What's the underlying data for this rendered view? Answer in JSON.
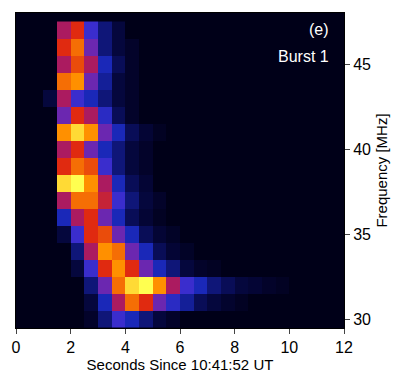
{
  "chart_data": {
    "type": "heatmap",
    "x_label": "Seconds Since 10:41:52 UT",
    "y_label": "Frequency [MHz]",
    "annotations": [
      "(e)",
      "Burst 1"
    ],
    "xlim": [
      0,
      12
    ],
    "ylim": [
      29.5,
      48
    ],
    "xticks": [
      0,
      2,
      4,
      6,
      8,
      10,
      12
    ],
    "yticks": [
      30,
      35,
      40,
      45
    ],
    "x": [
      0.25,
      0.75,
      1.25,
      1.75,
      2.25,
      2.75,
      3.25,
      3.75,
      4.25,
      4.75,
      5.25,
      5.75,
      6.25,
      6.75,
      7.25,
      7.75,
      8.25,
      8.75,
      9.25,
      9.75,
      10.25,
      10.75,
      11.25,
      11.75
    ],
    "y": [
      30,
      31,
      32,
      33,
      34,
      35,
      36,
      37,
      38,
      39,
      40,
      41,
      42,
      43,
      44,
      45,
      46,
      47
    ],
    "z": [
      [
        0,
        0,
        0,
        0,
        0,
        0.05,
        0.2,
        0.4,
        0.3,
        0.2,
        0.1,
        0.05,
        0,
        0,
        0,
        0,
        0,
        0,
        0,
        0,
        0,
        0,
        0,
        0
      ],
      [
        0,
        0,
        0,
        0,
        0,
        0.1,
        0.3,
        0.6,
        0.8,
        0.7,
        0.5,
        0.35,
        0.25,
        0.15,
        0.1,
        0.06,
        0.03,
        0,
        0,
        0,
        0,
        0,
        0,
        0
      ],
      [
        0,
        0,
        0,
        0,
        0,
        0.2,
        0.5,
        0.8,
        0.95,
        1.0,
        0.85,
        0.6,
        0.4,
        0.3,
        0.2,
        0.15,
        0.1,
        0.08,
        0.05,
        0.03,
        0,
        0,
        0,
        0
      ],
      [
        0,
        0,
        0,
        0,
        0.1,
        0.4,
        0.7,
        0.85,
        0.7,
        0.5,
        0.3,
        0.2,
        0.1,
        0.05,
        0.03,
        0,
        0,
        0,
        0,
        0,
        0,
        0,
        0,
        0
      ],
      [
        0,
        0,
        0,
        0,
        0.2,
        0.6,
        0.85,
        0.8,
        0.5,
        0.3,
        0.15,
        0.08,
        0.04,
        0,
        0,
        0,
        0,
        0,
        0,
        0,
        0,
        0,
        0,
        0
      ],
      [
        0,
        0,
        0,
        0.1,
        0.4,
        0.7,
        0.75,
        0.5,
        0.3,
        0.15,
        0.08,
        0.04,
        0,
        0,
        0,
        0,
        0,
        0,
        0,
        0,
        0,
        0,
        0,
        0
      ],
      [
        0,
        0,
        0,
        0.3,
        0.6,
        0.7,
        0.5,
        0.3,
        0.15,
        0.08,
        0.03,
        0,
        0,
        0,
        0,
        0,
        0,
        0,
        0,
        0,
        0,
        0,
        0,
        0
      ],
      [
        0,
        0,
        0,
        0.6,
        0.8,
        0.8,
        0.65,
        0.4,
        0.2,
        0.1,
        0.05,
        0,
        0,
        0,
        0,
        0,
        0,
        0,
        0,
        0,
        0,
        0,
        0,
        0
      ],
      [
        0,
        0,
        0,
        0.95,
        1.0,
        0.85,
        0.6,
        0.3,
        0.15,
        0.08,
        0,
        0,
        0,
        0,
        0,
        0,
        0,
        0,
        0,
        0,
        0,
        0,
        0,
        0
      ],
      [
        0,
        0,
        0,
        0.7,
        0.8,
        0.75,
        0.4,
        0.2,
        0.1,
        0.05,
        0,
        0,
        0,
        0,
        0,
        0,
        0,
        0,
        0,
        0,
        0,
        0,
        0,
        0
      ],
      [
        0,
        0,
        0,
        0.6,
        0.7,
        0.5,
        0.3,
        0.2,
        0.1,
        0.05,
        0,
        0,
        0,
        0,
        0,
        0,
        0,
        0,
        0,
        0,
        0,
        0,
        0,
        0
      ],
      [
        0,
        0,
        0,
        0.85,
        0.95,
        0.85,
        0.5,
        0.3,
        0.15,
        0.08,
        0.03,
        0,
        0,
        0,
        0,
        0,
        0,
        0,
        0,
        0,
        0,
        0,
        0,
        0
      ],
      [
        0,
        0,
        0,
        0.5,
        0.7,
        0.6,
        0.35,
        0.15,
        0.05,
        0,
        0,
        0,
        0,
        0,
        0,
        0,
        0,
        0,
        0,
        0,
        0,
        0,
        0,
        0
      ],
      [
        0,
        0,
        0.1,
        0.6,
        0.4,
        0.3,
        0.2,
        0.1,
        0.05,
        0,
        0,
        0,
        0,
        0,
        0,
        0,
        0,
        0,
        0,
        0,
        0,
        0,
        0,
        0
      ],
      [
        0,
        0,
        0,
        0.8,
        0.85,
        0.5,
        0.25,
        0.1,
        0.05,
        0,
        0,
        0,
        0,
        0,
        0,
        0,
        0,
        0,
        0,
        0,
        0,
        0,
        0,
        0
      ],
      [
        0,
        0,
        0,
        0.6,
        0.75,
        0.6,
        0.3,
        0.15,
        0.05,
        0,
        0,
        0,
        0,
        0,
        0,
        0,
        0,
        0,
        0,
        0,
        0,
        0,
        0,
        0
      ],
      [
        0,
        0,
        0,
        0.7,
        0.8,
        0.5,
        0.2,
        0.1,
        0.05,
        0,
        0,
        0,
        0,
        0,
        0,
        0,
        0,
        0,
        0,
        0,
        0,
        0,
        0,
        0
      ],
      [
        0,
        0,
        0,
        0.6,
        0.7,
        0.4,
        0.2,
        0.1,
        0,
        0,
        0,
        0,
        0,
        0,
        0,
        0,
        0,
        0,
        0,
        0,
        0,
        0,
        0,
        0
      ]
    ]
  }
}
